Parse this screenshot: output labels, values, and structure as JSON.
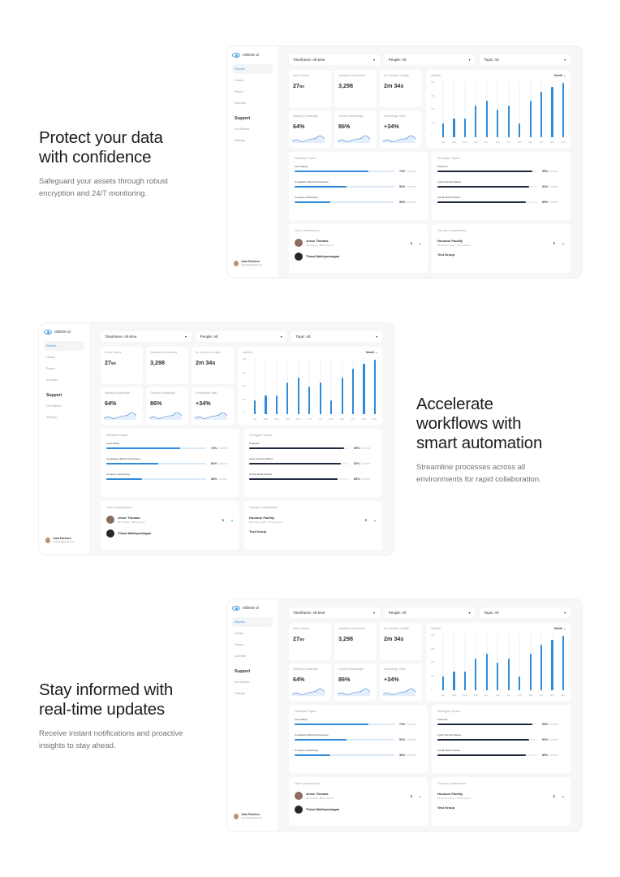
{
  "sections": [
    {
      "title_line1": "Protect your data",
      "title_line2": "with confidence",
      "body_line1": "Safeguard your assets through robust",
      "body_line2": "encryption and 24/7 monitoring."
    },
    {
      "title_line1": "Accelerate",
      "title_line2": "workflows with",
      "title_line3": "smart automation",
      "body_line1": "Streamline processes across all",
      "body_line2": "environments for rapid collaboration."
    },
    {
      "title_line1": "Stay informed with",
      "title_line2": "real-time updates",
      "body_line1": "Receive instant notifications and proactive",
      "body_line2": "insights to stay ahead."
    }
  ],
  "app": {
    "logo": "oxbow ui",
    "nav": [
      "Reports",
      "Library",
      "People",
      "Activities"
    ],
    "support_heading": "Support",
    "support_items": [
      "Get Started",
      "Settings"
    ],
    "user": {
      "name": "Juan Pacheco",
      "email": "example@gmail.com"
    },
    "filters": {
      "timeframe": "Timeframe: All-time",
      "people": "People: All",
      "topic": "Topic: All"
    },
    "kpis": [
      {
        "label": "Active Users",
        "value": "27",
        "suffix": "/80"
      },
      {
        "label": "Questions Answered",
        "value": "3,298",
        "suffix": ""
      },
      {
        "label": "Av. Session Length",
        "value": "2m 34s",
        "suffix": ""
      },
      {
        "label": "Starting Knowledge",
        "value": "64%",
        "suffix": ""
      },
      {
        "label": "Current Knowledge",
        "value": "86%",
        "suffix": ""
      },
      {
        "label": "Knowledge Gain",
        "value": "+34%",
        "suffix": ""
      }
    ],
    "activity": {
      "title": "Activity",
      "range": "Month ⌄",
      "y_ticks": [
        "400",
        "300",
        "200",
        "100",
        "0"
      ],
      "months": [
        "JAN",
        "FEB",
        "MAR",
        "APR",
        "MAY",
        "JUN",
        "JUL",
        "AUG",
        "SEP",
        "OCT",
        "NOV",
        "DEC"
      ],
      "values": [
        105,
        140,
        140,
        240,
        275,
        205,
        240,
        105,
        275,
        340,
        375,
        410
      ]
    },
    "weakest": {
      "title": "Weakest Topics",
      "items": [
        {
          "name": "Food Safety",
          "pct": "74%",
          "value": 74
        },
        {
          "name": "Compliance Basics Procedures",
          "pct": "52%",
          "value": 52
        },
        {
          "name": "Company Networking",
          "pct": "36%",
          "value": 36
        }
      ]
    },
    "strongest": {
      "title": "Strongest Topics",
      "items": [
        {
          "name": "Protocols",
          "pct": "95%",
          "value": 95
        },
        {
          "name": "Cyber Security Basics",
          "pct": "92%",
          "value": 92
        },
        {
          "name": "Social Media Policies",
          "pct": "89%",
          "value": 89
        }
      ]
    },
    "correct_label": "Correct",
    "user_board": {
      "title": "User Leaderboard",
      "entries": [
        {
          "name": "Jesse Thomas",
          "sub": "637 Points - 98% Correct",
          "rank": "1"
        },
        {
          "name": "Thisal Mathiyazhagan",
          "sub": "",
          "rank": "2"
        }
      ]
    },
    "group_board": {
      "title": "Groups Leaderboard",
      "entries": [
        {
          "name": "Houston Facility",
          "sub": "52 Points / User - 97% Correct",
          "rank": "1"
        },
        {
          "name": "Test Group",
          "sub": "",
          "rank": "2"
        }
      ]
    }
  },
  "chart_data": {
    "type": "bar",
    "title": "Activity",
    "categories": [
      "JAN",
      "FEB",
      "MAR",
      "APR",
      "MAY",
      "JUN",
      "JUL",
      "AUG",
      "SEP",
      "OCT",
      "NOV",
      "DEC"
    ],
    "values": [
      105,
      140,
      140,
      240,
      275,
      205,
      240,
      105,
      275,
      340,
      375,
      410
    ],
    "xlabel": "",
    "ylabel": "",
    "ylim": [
      0,
      420
    ],
    "y_ticks": [
      0,
      100,
      200,
      300,
      400
    ],
    "grid": true,
    "legend": "none"
  },
  "colors": {
    "accent": "#2f8ad8",
    "dark_bar": "#1f2940",
    "positive": "#3ccf8e"
  }
}
